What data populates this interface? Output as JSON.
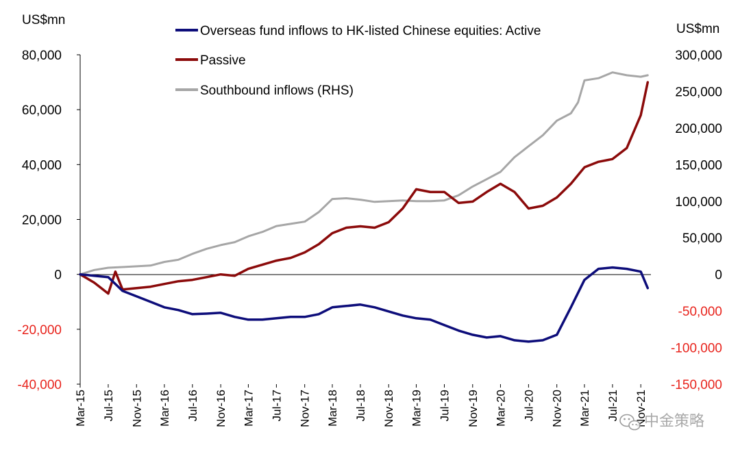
{
  "chart_data": {
    "type": "line",
    "left_axis_unit": "US$mn",
    "right_axis_unit": "US$mn",
    "left_ticks": [
      "80,000",
      "60,000",
      "40,000",
      "20,000",
      "0",
      "-20,000",
      "-40,000"
    ],
    "right_ticks": [
      "300,000",
      "250,000",
      "200,000",
      "150,000",
      "100,000",
      "50,000",
      "0",
      "-50,000",
      "-100,000",
      "-150,000"
    ],
    "ylim_left": [
      -40000,
      80000
    ],
    "ylim_right": [
      -150000,
      300000
    ],
    "x_tick_labels": [
      "Mar-15",
      "Jul-15",
      "Nov-15",
      "Mar-16",
      "Jul-16",
      "Nov-16",
      "Mar-17",
      "Jul-17",
      "Nov-17",
      "Mar-18",
      "Jul-18",
      "Nov-18",
      "Mar-19",
      "Jul-19",
      "Nov-19",
      "Mar-20",
      "Jul-20",
      "Nov-20",
      "Mar-21",
      "Jul-21",
      "Nov-21"
    ],
    "legend_position": "top-center",
    "grid": false,
    "series": [
      {
        "name": "Overseas fund inflows to HK-listed Chinese equities: Active",
        "axis": "left",
        "color": "#0d0d7a",
        "x": [
          "2015-03",
          "2015-05",
          "2015-07",
          "2015-09",
          "2015-11",
          "2016-01",
          "2016-03",
          "2016-05",
          "2016-07",
          "2016-09",
          "2016-11",
          "2017-01",
          "2017-03",
          "2017-05",
          "2017-07",
          "2017-09",
          "2017-11",
          "2018-01",
          "2018-03",
          "2018-05",
          "2018-07",
          "2018-09",
          "2018-11",
          "2019-01",
          "2019-03",
          "2019-05",
          "2019-07",
          "2019-09",
          "2019-11",
          "2020-01",
          "2020-03",
          "2020-05",
          "2020-07",
          "2020-09",
          "2020-11",
          "2021-01",
          "2021-03",
          "2021-05",
          "2021-07",
          "2021-09",
          "2021-11",
          "2021-12"
        ],
        "values": [
          0,
          -500,
          -1000,
          -6000,
          -8000,
          -10000,
          -12000,
          -13000,
          -14500,
          -14300,
          -14000,
          -15500,
          -16500,
          -16500,
          -16000,
          -15500,
          -15500,
          -14500,
          -12000,
          -11500,
          -11000,
          -12000,
          -13500,
          -15000,
          -16000,
          -16500,
          -18500,
          -20500,
          -22000,
          -23000,
          -22500,
          -24000,
          -24500,
          -24000,
          -22000,
          -12000,
          -2000,
          2000,
          2500,
          2000,
          1000,
          -5000
        ]
      },
      {
        "name": "Passive",
        "axis": "left",
        "color": "#8b0a0a",
        "x": [
          "2015-03",
          "2015-05",
          "2015-07",
          "2015-08",
          "2015-09",
          "2015-11",
          "2016-01",
          "2016-03",
          "2016-05",
          "2016-07",
          "2016-09",
          "2016-11",
          "2017-01",
          "2017-03",
          "2017-05",
          "2017-07",
          "2017-09",
          "2017-11",
          "2018-01",
          "2018-03",
          "2018-05",
          "2018-07",
          "2018-09",
          "2018-11",
          "2019-01",
          "2019-03",
          "2019-05",
          "2019-07",
          "2019-09",
          "2019-11",
          "2020-01",
          "2020-03",
          "2020-05",
          "2020-07",
          "2020-09",
          "2020-11",
          "2021-01",
          "2021-03",
          "2021-05",
          "2021-07",
          "2021-09",
          "2021-11",
          "2021-12"
        ],
        "values": [
          0,
          -3000,
          -7000,
          1000,
          -5500,
          -5000,
          -4500,
          -3500,
          -2500,
          -2000,
          -1000,
          0,
          -500,
          2000,
          3500,
          5000,
          6000,
          8000,
          11000,
          15000,
          17000,
          17500,
          17000,
          19000,
          24000,
          31000,
          30000,
          30000,
          26000,
          26500,
          30000,
          33000,
          30000,
          24000,
          25000,
          28000,
          33000,
          39000,
          41000,
          42000,
          46000,
          58000,
          70000
        ]
      },
      {
        "name": "Southbound inflows (RHS)",
        "axis": "right",
        "color": "#a6a6a6",
        "x": [
          "2015-03",
          "2015-05",
          "2015-07",
          "2015-09",
          "2015-11",
          "2016-01",
          "2016-03",
          "2016-05",
          "2016-07",
          "2016-09",
          "2016-11",
          "2017-01",
          "2017-03",
          "2017-05",
          "2017-07",
          "2017-09",
          "2017-11",
          "2018-01",
          "2018-03",
          "2018-05",
          "2018-07",
          "2018-09",
          "2018-11",
          "2019-01",
          "2019-03",
          "2019-05",
          "2019-07",
          "2019-09",
          "2019-11",
          "2020-01",
          "2020-03",
          "2020-05",
          "2020-07",
          "2020-09",
          "2020-11",
          "2021-01",
          "2021-02",
          "2021-03",
          "2021-05",
          "2021-07",
          "2021-09",
          "2021-11",
          "2021-12"
        ],
        "values": [
          0,
          6000,
          9000,
          10000,
          11000,
          12000,
          17000,
          20000,
          28000,
          35000,
          40000,
          44000,
          52000,
          58000,
          66000,
          69000,
          72000,
          85000,
          103000,
          104000,
          102000,
          99000,
          100000,
          101000,
          100000,
          100000,
          101000,
          108000,
          120000,
          130000,
          140000,
          160000,
          175000,
          190000,
          210000,
          220000,
          235000,
          265000,
          268000,
          276000,
          272000,
          270000,
          272000
        ]
      }
    ]
  },
  "watermark": {
    "text": "中金策略",
    "icon": "wechat-icon"
  }
}
